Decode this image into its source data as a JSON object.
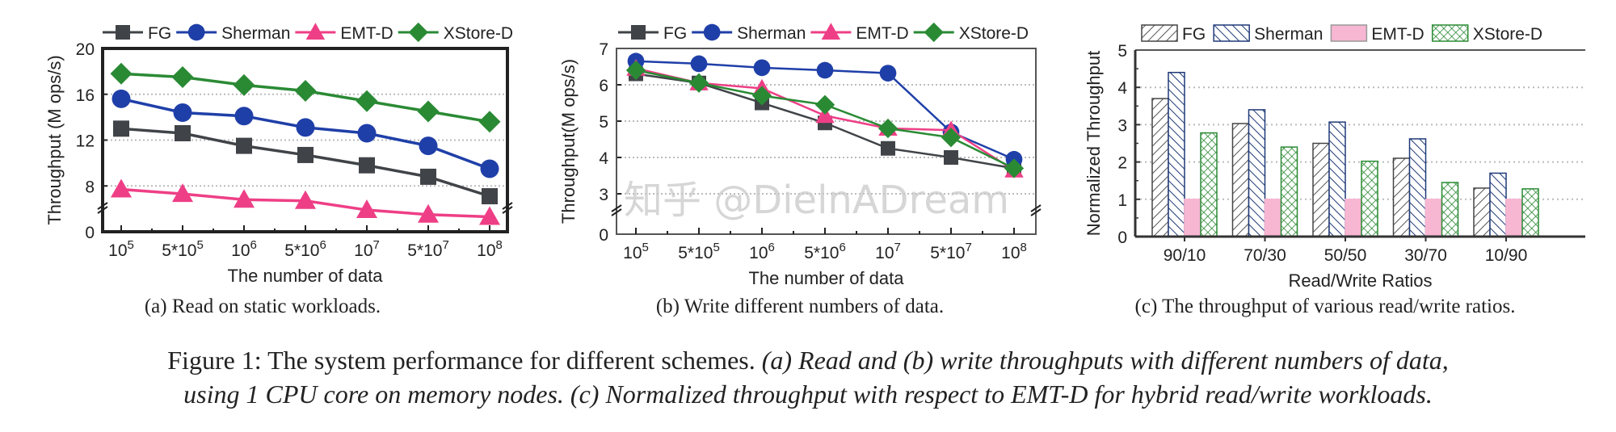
{
  "colors": {
    "FG": "#404448",
    "Sherman": "#1f3fa8",
    "EMT-D": "#ee3f86",
    "XStore-D": "#2a8a34",
    "EMT-D_bar": "#f7b6d2"
  },
  "chart_data": [
    {
      "type": "line",
      "panel": "a",
      "xlabel": "The number of data",
      "ylabel": "Throughput (M ops/s)",
      "categories": [
        "10^5",
        "5*10^5",
        "10^6",
        "5*10^6",
        "10^7",
        "5*10^7",
        "10^8"
      ],
      "ytick_labels": [
        "0",
        "8",
        "12",
        "16",
        "20"
      ],
      "ylim": [
        4,
        20
      ],
      "axis_break": true,
      "grid": "dotted-horizontal",
      "legend": "top",
      "series": [
        {
          "name": "FG",
          "marker": "square",
          "values": [
            13.0,
            12.6,
            11.5,
            10.7,
            9.8,
            8.8,
            7.1
          ]
        },
        {
          "name": "Sherman",
          "marker": "circle",
          "values": [
            15.6,
            14.4,
            14.1,
            13.1,
            12.6,
            11.5,
            9.5
          ]
        },
        {
          "name": "EMT-D",
          "marker": "triangle",
          "values": [
            7.7,
            7.3,
            6.8,
            6.7,
            5.9,
            5.5,
            5.3
          ]
        },
        {
          "name": "XStore-D",
          "marker": "diamond",
          "values": [
            17.8,
            17.5,
            16.8,
            16.3,
            15.4,
            14.5,
            13.6
          ]
        }
      ]
    },
    {
      "type": "line",
      "panel": "b",
      "xlabel": "The number of data",
      "ylabel": "Throughput(M ops/s)",
      "categories": [
        "10^5",
        "5*10^5",
        "10^6",
        "5*10^6",
        "10^7",
        "5*10^7",
        "10^8"
      ],
      "ytick_labels": [
        "0",
        "3",
        "4",
        "5",
        "6",
        "7"
      ],
      "ylim": [
        2,
        7
      ],
      "axis_break": true,
      "grid": "dotted-horizontal",
      "legend": "top",
      "series": [
        {
          "name": "FG",
          "marker": "square",
          "values": [
            6.3,
            6.05,
            5.5,
            4.95,
            4.25,
            4.0,
            3.7
          ]
        },
        {
          "name": "Sherman",
          "marker": "circle",
          "values": [
            6.65,
            6.58,
            6.47,
            6.4,
            6.32,
            4.7,
            3.95
          ]
        },
        {
          "name": "EMT-D",
          "marker": "triangle",
          "values": [
            6.45,
            6.05,
            5.9,
            5.15,
            4.8,
            4.75,
            3.65
          ]
        },
        {
          "name": "XStore-D",
          "marker": "diamond",
          "values": [
            6.4,
            6.05,
            5.7,
            5.45,
            4.8,
            4.55,
            3.7
          ]
        }
      ]
    },
    {
      "type": "bar",
      "panel": "c",
      "xlabel": "Read/Write Ratios",
      "ylabel": "Normalized Throughput",
      "categories": [
        "90/10",
        "70/30",
        "50/50",
        "30/70",
        "10/90"
      ],
      "ytick_labels": [
        "0",
        "1",
        "2",
        "3",
        "4",
        "5"
      ],
      "ylim": [
        0,
        5
      ],
      "grid": "dotted-horizontal",
      "legend": "top",
      "series": [
        {
          "name": "FG",
          "pattern": "diagonal-hatch",
          "values": [
            3.7,
            3.03,
            2.5,
            2.1,
            1.3
          ]
        },
        {
          "name": "Sherman",
          "pattern": "back-diagonal-hatch",
          "values": [
            4.4,
            3.4,
            3.07,
            2.62,
            1.7
          ]
        },
        {
          "name": "EMT-D",
          "pattern": "solid-pink",
          "values": [
            1,
            1,
            1,
            1,
            1
          ]
        },
        {
          "name": "XStore-D",
          "pattern": "crosshatch",
          "values": [
            2.78,
            2.4,
            2.02,
            1.45,
            1.28
          ]
        }
      ]
    }
  ],
  "captions": {
    "a": "(a) Read on static workloads.",
    "b": "(b) Write different numbers of data.",
    "c": "(c) The throughput of various read/write ratios.",
    "figure_line1_plain": "Figure 1: The system performance for different schemes. ",
    "figure_line1_italic": "(a) Read and (b) write throughputs with different numbers of data,",
    "figure_line2_italic": "using 1 CPU core on memory nodes. (c) Normalized throughput with respect to EMT-D for hybrid read/write workloads."
  },
  "watermark": "知乎 @DielnADream"
}
